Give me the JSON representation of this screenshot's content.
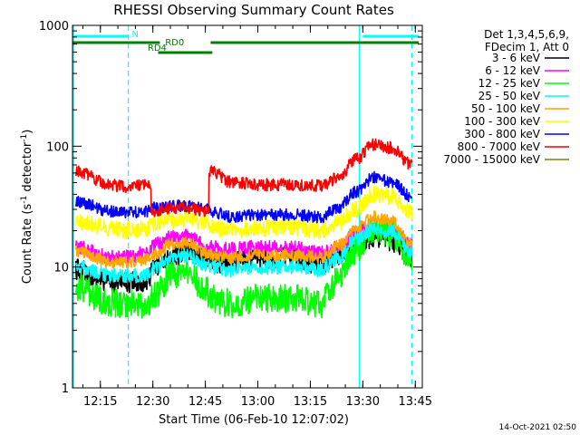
{
  "chart_data": {
    "type": "line",
    "title": "RHESSI Observing Summary Count Rates",
    "xlabel": "Start Time (06-Feb-10 12:07:02)",
    "ylabel_main": "Count Rate (s",
    "ylabel_sup1": "-1",
    "ylabel_mid": " detector",
    "ylabel_sup2": "-1",
    "ylabel_end": ")",
    "yscale": "log",
    "ylim": [
      1,
      1000
    ],
    "xlim": [
      "12:07:02",
      "13:47:00"
    ],
    "x_ticks": [
      "12:15",
      "12:30",
      "12:45",
      "13:00",
      "13:15",
      "13:30",
      "13:45"
    ],
    "y_ticks": [
      "1",
      "10",
      "100",
      "1000"
    ],
    "legend_header": [
      "Det 1,3,4,5,6,9,",
      "FDecim 1, Att 0"
    ],
    "legend_position": "right",
    "timestamp": "14-Oct-2021 02:50",
    "x": [
      "12:08",
      "12:18",
      "12:22",
      "12:28",
      "12:31",
      "12:35",
      "12:40",
      "12:45",
      "12:47",
      "12:52",
      "13:00",
      "13:10",
      "13:18",
      "13:23",
      "13:28",
      "13:33",
      "13:38",
      "13:44"
    ],
    "series": [
      {
        "name": "3 - 6 keV",
        "color": "#000000",
        "values": [
          9.5,
          7.5,
          7.5,
          7.5,
          10.5,
          12,
          13.5,
          12,
          11,
          11,
          12,
          12,
          10.5,
          12.5,
          16.5,
          17.5,
          16.5,
          11.5
        ]
      },
      {
        "name": "6 - 12 keV",
        "color": "#ff00ff",
        "values": [
          14.5,
          12,
          12,
          13,
          15.5,
          17.5,
          18,
          15,
          14.5,
          14,
          14.5,
          14.5,
          13,
          14.5,
          19,
          22,
          21,
          15
        ]
      },
      {
        "name": "12 - 25 keV",
        "color": "#00ff00",
        "values": [
          7,
          5,
          5,
          4.8,
          6,
          8.5,
          9,
          6.5,
          5.5,
          5,
          5.5,
          5.5,
          5,
          8,
          14,
          20,
          19,
          12
        ]
      },
      {
        "name": "25 - 50 keV",
        "color": "#00ffff",
        "values": [
          10,
          8.5,
          8.5,
          8.5,
          10,
          12,
          12.5,
          10.5,
          10,
          9.5,
          10,
          10,
          9.5,
          12,
          17,
          21,
          20,
          13
        ]
      },
      {
        "name": "50 - 100 keV",
        "color": "#ffa500",
        "values": [
          13.5,
          11,
          11,
          11.5,
          13,
          15.5,
          16,
          13,
          12.5,
          12,
          12.5,
          12.5,
          12,
          15,
          21,
          26,
          24,
          16
        ]
      },
      {
        "name": "100 - 300 keV",
        "color": "#ffff00",
        "values": [
          24,
          21,
          20,
          21,
          23,
          24,
          25,
          24,
          21,
          20,
          21,
          21.5,
          20,
          23,
          30,
          40,
          38,
          28
        ]
      },
      {
        "name": "300 - 800 keV",
        "color": "#0000ff",
        "values": [
          35,
          29,
          28,
          29,
          31,
          32,
          32,
          31,
          29,
          26,
          27,
          27,
          26,
          31,
          42,
          55,
          51,
          38
        ]
      },
      {
        "name": "800 - 7000 keV",
        "color": "#ff0000",
        "values": [
          62,
          48,
          46,
          48,
          29,
          31,
          31,
          29,
          62,
          51,
          48,
          48,
          47,
          55,
          78,
          103,
          97,
          70
        ]
      },
      {
        "name": "7000 - 15000 keV",
        "color": "#808000",
        "values": [
          null,
          null,
          null,
          null,
          null,
          null,
          null,
          null,
          null,
          null,
          null,
          null,
          null,
          null,
          null,
          null,
          null,
          null
        ]
      }
    ],
    "annotations": [
      {
        "label": "N",
        "start": "12:07:02",
        "end": "12:23:00",
        "color": "#00ffff"
      },
      {
        "label": "",
        "start": "13:30:00",
        "end": "13:46:00",
        "color": "#00ffff"
      },
      {
        "label": "RD0",
        "start": "12:07:02",
        "end": "12:32:00",
        "color": "#008000"
      },
      {
        "label": "",
        "start": "12:46:30",
        "end": "13:46:00",
        "color": "#008000"
      },
      {
        "label": "RD4",
        "start": "12:31:30",
        "end": "12:47:00",
        "color": "#008000"
      }
    ],
    "vlines_solid": [
      "13:29:00"
    ],
    "vlines_dashed": [
      "12:23:00",
      "13:44:00"
    ]
  }
}
